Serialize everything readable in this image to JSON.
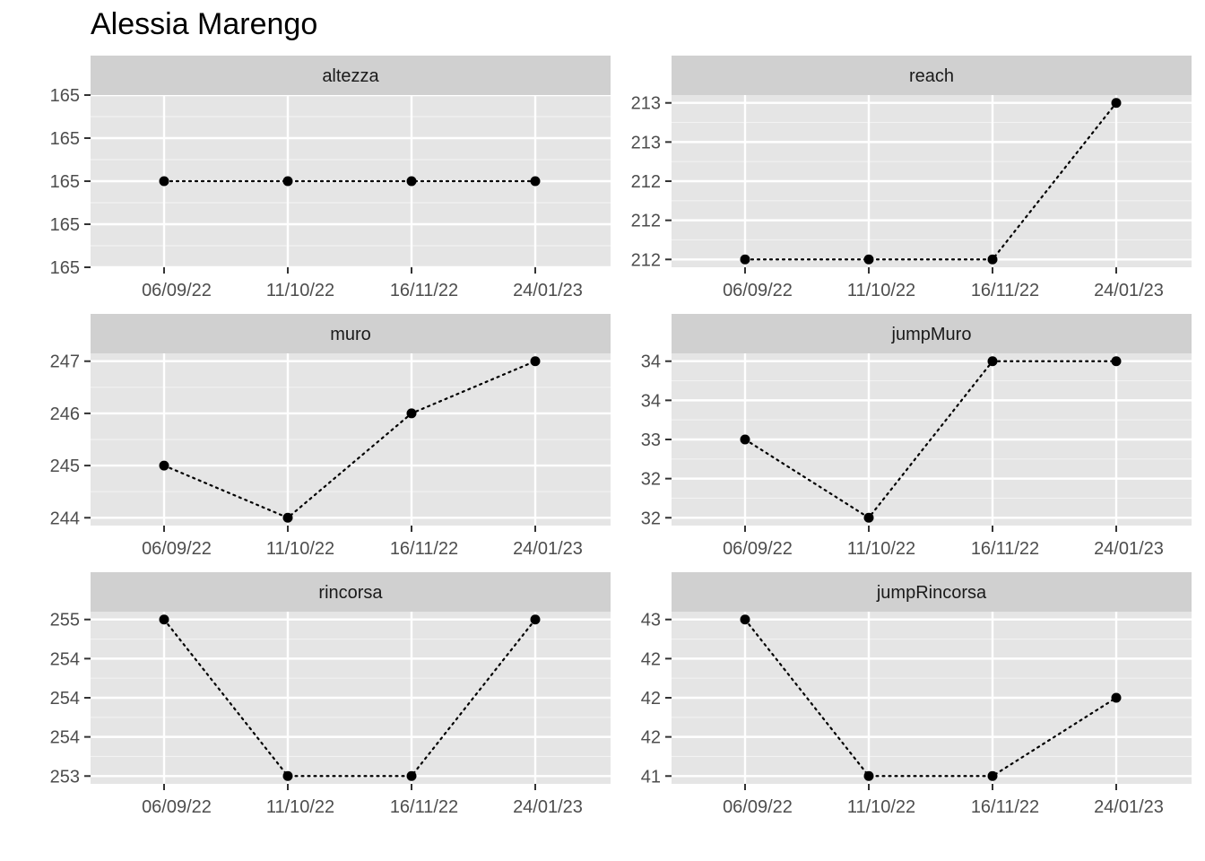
{
  "title": "Alessia Marengo",
  "colors": {
    "panel_background": "#e5e5e5",
    "strip_background": "#d0d0d0",
    "grid_major": "#ffffff",
    "grid_minor": "#f2f2f2",
    "line": "#000000",
    "point": "#000000",
    "tick_text": "#4d4d4d"
  },
  "chart_data": [
    {
      "type": "line",
      "panel": "altezza",
      "line_style": "dotted",
      "categories": [
        "06/09/22",
        "11/10/22",
        "16/11/22",
        "24/01/23"
      ],
      "values": [
        165,
        165,
        165,
        165
      ],
      "ylim": [
        164.9,
        165.1
      ],
      "y_ticks": [
        164.9,
        164.95,
        165,
        165.05,
        165.1
      ],
      "y_tick_labels": [
        "165",
        "165",
        "165",
        "165",
        "165"
      ],
      "grid": true
    },
    {
      "type": "line",
      "panel": "reach",
      "line_style": "dotted",
      "categories": [
        "06/09/22",
        "11/10/22",
        "16/11/22",
        "24/01/23"
      ],
      "values": [
        212,
        212,
        212,
        213
      ],
      "ylim": [
        211.95,
        213.05
      ],
      "y_ticks": [
        212,
        212.25,
        212.5,
        212.75,
        213
      ],
      "y_tick_labels": [
        "212",
        "212",
        "212",
        "213",
        "213"
      ],
      "grid": true
    },
    {
      "type": "line",
      "panel": "muro",
      "line_style": "dotted",
      "categories": [
        "06/09/22",
        "11/10/22",
        "16/11/22",
        "24/01/23"
      ],
      "values": [
        245,
        244,
        246,
        247
      ],
      "ylim": [
        243.85,
        247.15
      ],
      "y_ticks": [
        244,
        245,
        246,
        247
      ],
      "y_tick_labels": [
        "244",
        "245",
        "246",
        "247"
      ],
      "grid": true
    },
    {
      "type": "line",
      "panel": "jumpMuro",
      "line_style": "dotted",
      "categories": [
        "06/09/22",
        "11/10/22",
        "16/11/22",
        "24/01/23"
      ],
      "values": [
        33,
        32,
        34,
        34
      ],
      "ylim": [
        31.9,
        34.1
      ],
      "y_ticks": [
        32,
        32.5,
        33,
        33.5,
        34
      ],
      "y_tick_labels": [
        "32",
        "32",
        "33",
        "34",
        "34"
      ],
      "grid": true
    },
    {
      "type": "line",
      "panel": "rincorsa",
      "line_style": "dotted",
      "categories": [
        "06/09/22",
        "11/10/22",
        "16/11/22",
        "24/01/23"
      ],
      "values": [
        255,
        253,
        253,
        255
      ],
      "ylim": [
        252.9,
        255.1
      ],
      "y_ticks": [
        253,
        253.5,
        254,
        254.5,
        255
      ],
      "y_tick_labels": [
        "253",
        "254",
        "254",
        "254",
        "255"
      ],
      "grid": true
    },
    {
      "type": "line",
      "panel": "jumpRincorsa",
      "line_style": "dotted",
      "categories": [
        "06/09/22",
        "11/10/22",
        "16/11/22",
        "24/01/23"
      ],
      "values": [
        43,
        41,
        41,
        42
      ],
      "ylim": [
        40.9,
        43.1
      ],
      "y_ticks": [
        41,
        41.5,
        42,
        42.5,
        43
      ],
      "y_tick_labels": [
        "41",
        "42",
        "42",
        "42",
        "43"
      ],
      "grid": true
    }
  ]
}
